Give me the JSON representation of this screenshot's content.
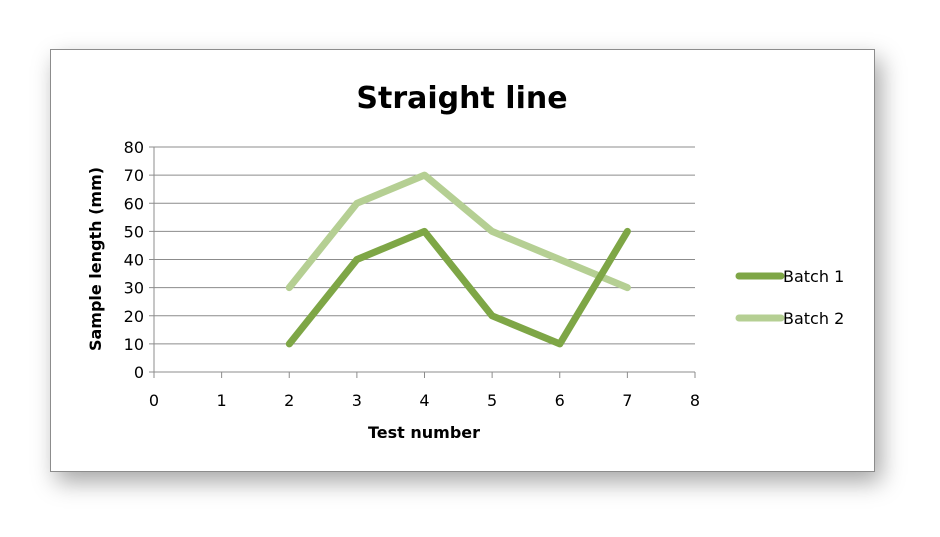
{
  "chart_data": {
    "type": "line",
    "title": "Straight line",
    "xlabel": "Test number",
    "ylabel": "Sample length (mm)",
    "xlim": [
      0,
      8
    ],
    "ylim": [
      0,
      80
    ],
    "x_ticks": [
      "0",
      "1",
      "2",
      "3",
      "4",
      "5",
      "6",
      "7",
      "8"
    ],
    "y_ticks": [
      "0",
      "10",
      "20",
      "30",
      "40",
      "50",
      "60",
      "70",
      "80"
    ],
    "grid": true,
    "legend_position": "right",
    "series": [
      {
        "name": "Batch 1",
        "color": "#7ea646",
        "x": [
          2,
          3,
          4,
          5,
          6,
          7
        ],
        "y": [
          10,
          40,
          50,
          20,
          10,
          50
        ]
      },
      {
        "name": "Batch 2",
        "color": "#b5cf93",
        "x": [
          2,
          3,
          4,
          5,
          6,
          7
        ],
        "y": [
          30,
          60,
          70,
          50,
          40,
          30
        ]
      }
    ]
  }
}
